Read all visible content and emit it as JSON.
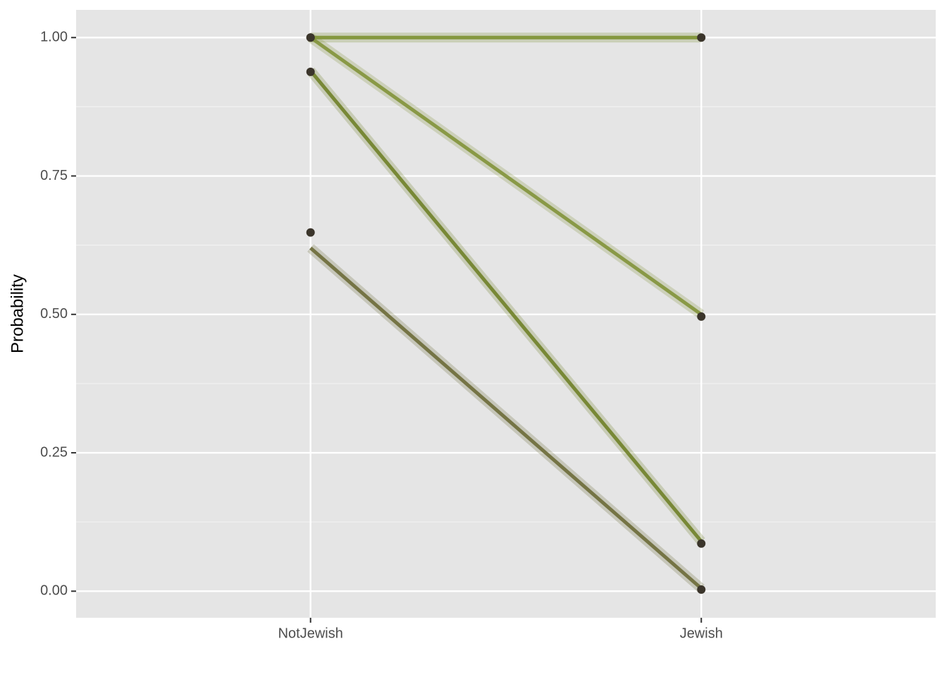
{
  "chart_data": {
    "type": "line",
    "y_label": "Probability",
    "categories": [
      "NotJewish",
      "Jewish"
    ],
    "ylim": [
      -0.048,
      1.05
    ],
    "yticks": [
      {
        "value": 0,
        "label": "0.00"
      },
      {
        "value": 0.25,
        "label": "0.25"
      },
      {
        "value": 0.5,
        "label": "0.50"
      },
      {
        "value": 0.75,
        "label": "0.75"
      },
      {
        "value": 1,
        "label": "1.00"
      }
    ],
    "grid": true,
    "series": [
      {
        "color": "#7b8f2f",
        "values": [
          1.0,
          1.0
        ]
      },
      {
        "color": "#82923a",
        "values": [
          1.0,
          0.5
        ]
      },
      {
        "color": "#6f8128",
        "values": [
          0.94,
          0.09
        ]
      },
      {
        "color": "#6b6a38",
        "values": [
          0.62,
          0.005
        ]
      }
    ],
    "points": {
      "color": "#3b352b",
      "series": [
        {
          "values": [
            1.0,
            1.0
          ]
        },
        {
          "values": [
            1.0,
            0.496
          ]
        },
        {
          "values": [
            0.938,
            0.086
          ]
        },
        {
          "values": [
            0.648,
            0.003
          ]
        }
      ]
    }
  }
}
